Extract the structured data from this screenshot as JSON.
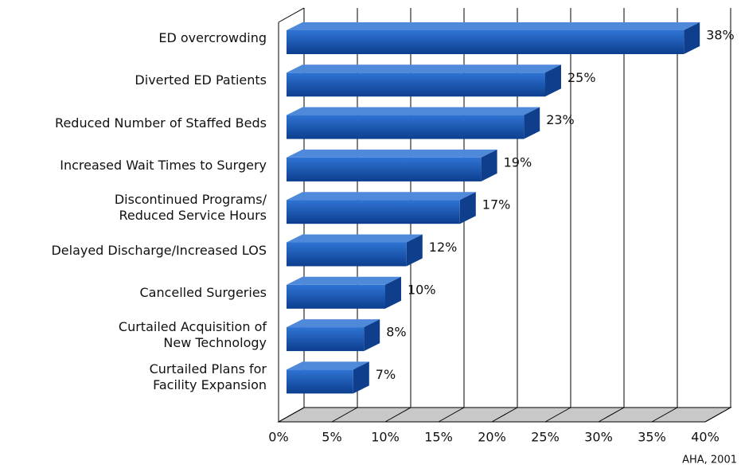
{
  "chart_data": {
    "type": "bar",
    "orientation": "horizontal",
    "categories": [
      "ED overcrowding",
      "Diverted ED Patients",
      "Reduced Number of Staffed Beds",
      "Increased Wait Times to Surgery",
      "Discontinued Programs/\nReduced Service Hours",
      "Delayed Discharge/Increased LOS",
      "Cancelled Surgeries",
      "Curtailed Acquisition of\nNew Technology",
      "Curtailed Plans for\nFacility Expansion"
    ],
    "values": [
      38,
      25,
      23,
      19,
      17,
      12,
      10,
      8,
      7
    ],
    "value_labels": [
      "38%",
      "25%",
      "23%",
      "19%",
      "17%",
      "12%",
      "10%",
      "8%",
      "7%"
    ],
    "color": "#1f5fbf",
    "xlim": [
      0,
      40
    ],
    "xticks": [
      {
        "value": 0,
        "label": "0%"
      },
      {
        "value": 5,
        "label": "5%"
      },
      {
        "value": 10,
        "label": "10%"
      },
      {
        "value": 15,
        "label": "15%"
      },
      {
        "value": 20,
        "label": "20%"
      },
      {
        "value": 25,
        "label": "25%"
      },
      {
        "value": 30,
        "label": "30%"
      },
      {
        "value": 35,
        "label": "35%"
      },
      {
        "value": 40,
        "label": "40%"
      }
    ],
    "grid": true,
    "source": "AHA, 2001"
  }
}
